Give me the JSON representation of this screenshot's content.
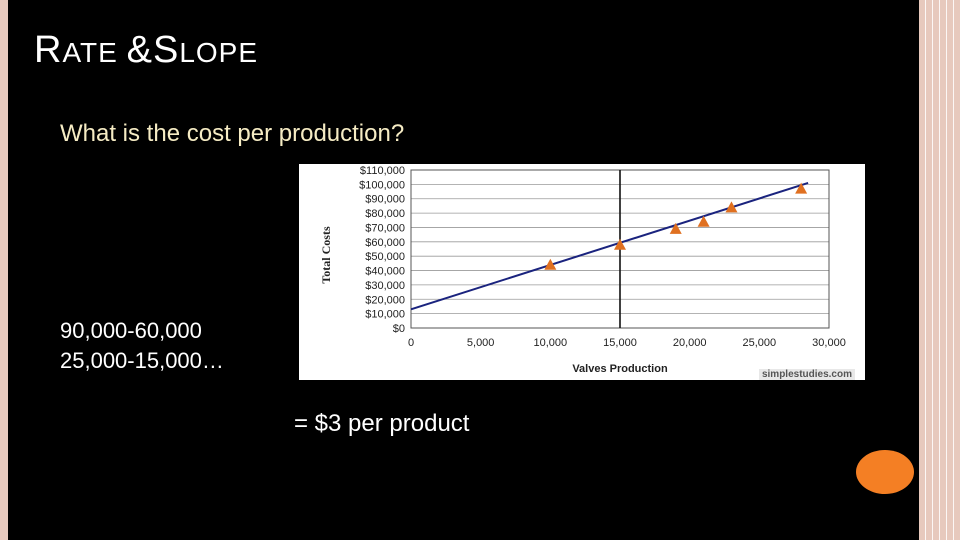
{
  "slide": {
    "title_cap1": "R",
    "title_rest1": "ATE ",
    "title_amp": "&",
    "title_cap2": "S",
    "title_rest2": "LOPE",
    "question": "What is the cost per production?",
    "calc_line1": "90,000-60,000",
    "calc_line2": "25,000-15,000…",
    "result": "= $3 per product",
    "watermark": "simplestudies.com",
    "colors": {
      "background": "#000000",
      "frame": "#e7c9bd",
      "accent": "#f47f24",
      "question_text": "#f6ecc4"
    }
  },
  "chart_data": {
    "type": "scatter",
    "xlabel": "Valves Production",
    "ylabel": "Total Costs",
    "xlim": [
      0,
      30000
    ],
    "ylim": [
      0,
      110000
    ],
    "x_ticks": [
      "0",
      "5,000",
      "10,000",
      "15,000",
      "20,000",
      "25,000",
      "30,000"
    ],
    "y_ticks": [
      "$0",
      "$10,000",
      "$20,000",
      "$30,000",
      "$40,000",
      "$50,000",
      "$60,000",
      "$70,000",
      "$80,000",
      "$90,000",
      "$100,000",
      "$110,000"
    ],
    "points": [
      {
        "x": 10000,
        "y": 44000
      },
      {
        "x": 15000,
        "y": 58000
      },
      {
        "x": 19000,
        "y": 69000
      },
      {
        "x": 21000,
        "y": 74000
      },
      {
        "x": 23000,
        "y": 84000
      },
      {
        "x": 28000,
        "y": 97000
      }
    ],
    "trendline": {
      "x": [
        0,
        28500
      ],
      "y": [
        13000,
        101000
      ]
    },
    "gridlines": "horizontal",
    "marker_color": "#e07020",
    "line_color": "#1a237e"
  }
}
